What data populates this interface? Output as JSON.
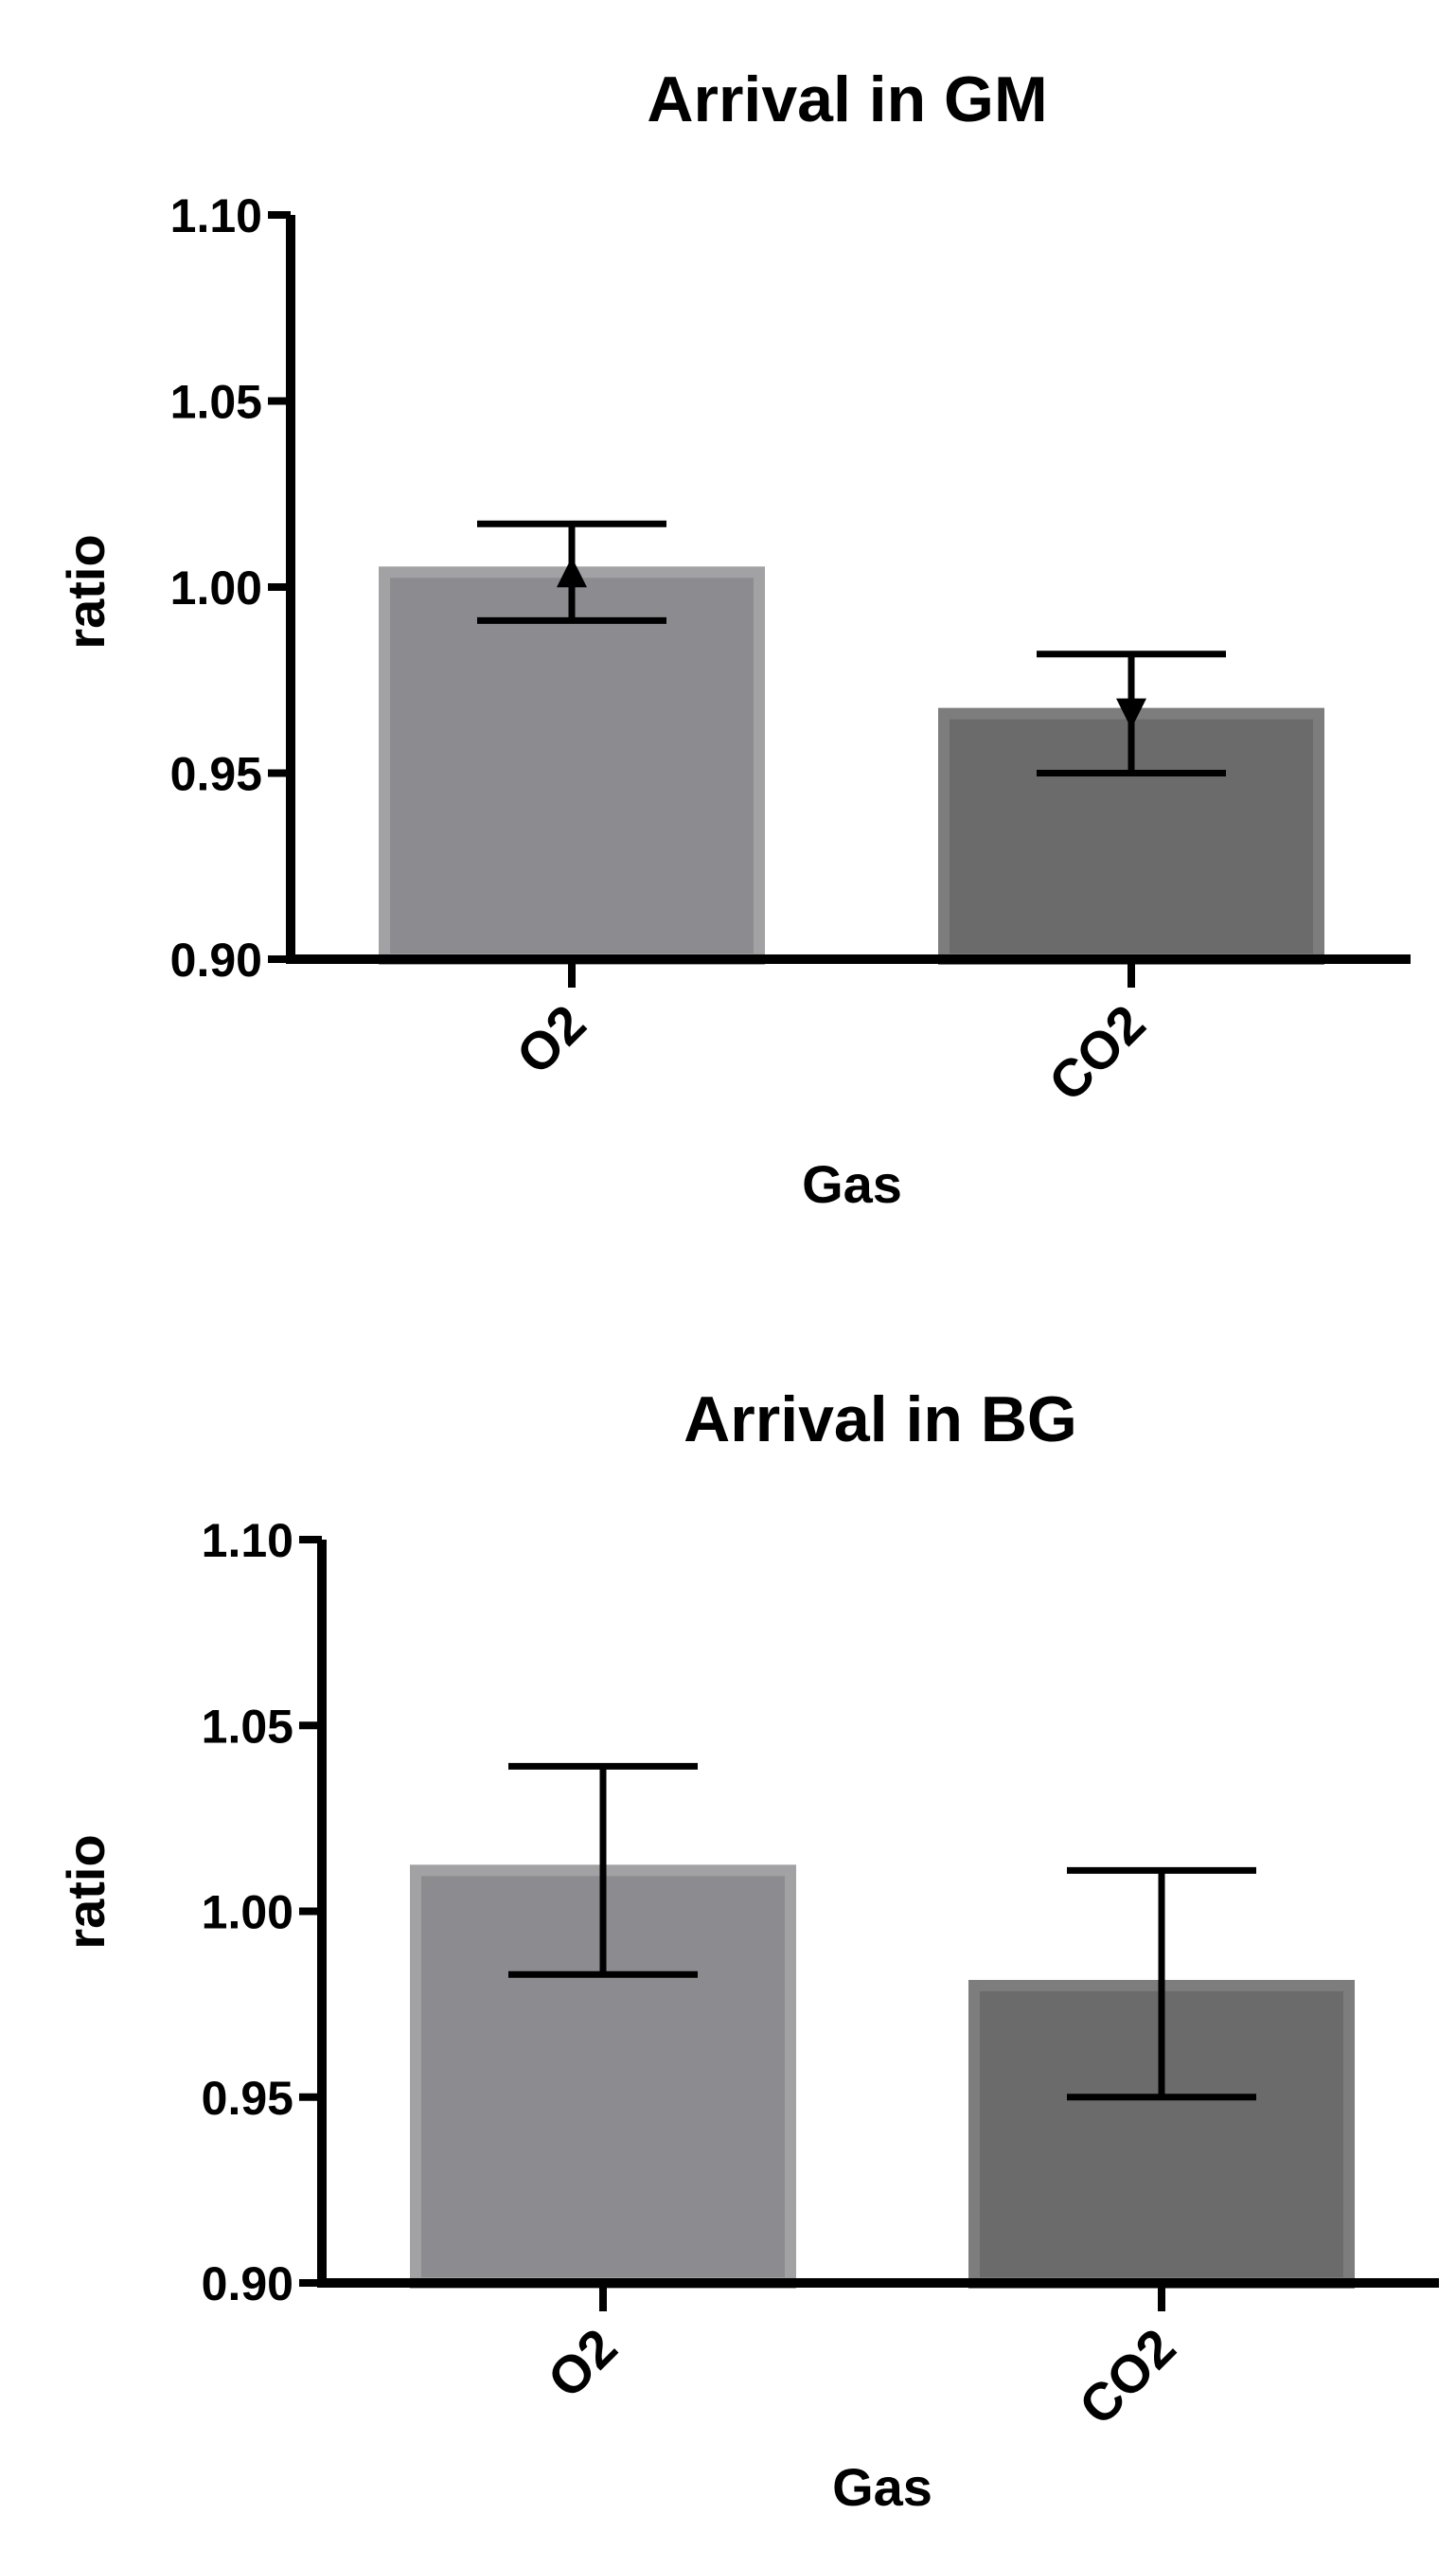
{
  "chart_data": [
    {
      "type": "bar",
      "title": "Arrival in GM",
      "xlabel": "Gas",
      "ylabel": "ratio",
      "categories": [
        "O2",
        "CO2"
      ],
      "values": [
        1.004,
        0.966
      ],
      "error_upper": [
        1.017,
        0.982
      ],
      "error_lower": [
        0.991,
        0.95
      ],
      "markers": [
        "triangle-up",
        "triangle-down"
      ],
      "ylim": [
        0.9,
        1.1
      ],
      "yticks": [
        "0.90",
        "0.95",
        "1.00",
        "1.05",
        "1.10"
      ],
      "grid": false,
      "colors": {
        "bar_fills": [
          "#8c8c90",
          "#6b6b6b"
        ],
        "bar_edges": [
          "#a2a2a4",
          "#7d7d7d"
        ],
        "axis": "#000000"
      }
    },
    {
      "type": "bar",
      "title": "Arrival in BG",
      "xlabel": "Gas",
      "ylabel": "ratio",
      "categories": [
        "O2",
        "CO2"
      ],
      "values": [
        1.011,
        0.98
      ],
      "error_upper": [
        1.039,
        1.011
      ],
      "error_lower": [
        0.983,
        0.95
      ],
      "markers": [],
      "ylim": [
        0.9,
        1.1
      ],
      "yticks": [
        "0.90",
        "0.95",
        "1.00",
        "1.05",
        "1.10"
      ],
      "grid": false,
      "colors": {
        "bar_fills": [
          "#8c8c90",
          "#6b6b6b"
        ],
        "bar_edges": [
          "#a2a2a4",
          "#7d7d7d"
        ],
        "axis": "#000000"
      }
    }
  ]
}
